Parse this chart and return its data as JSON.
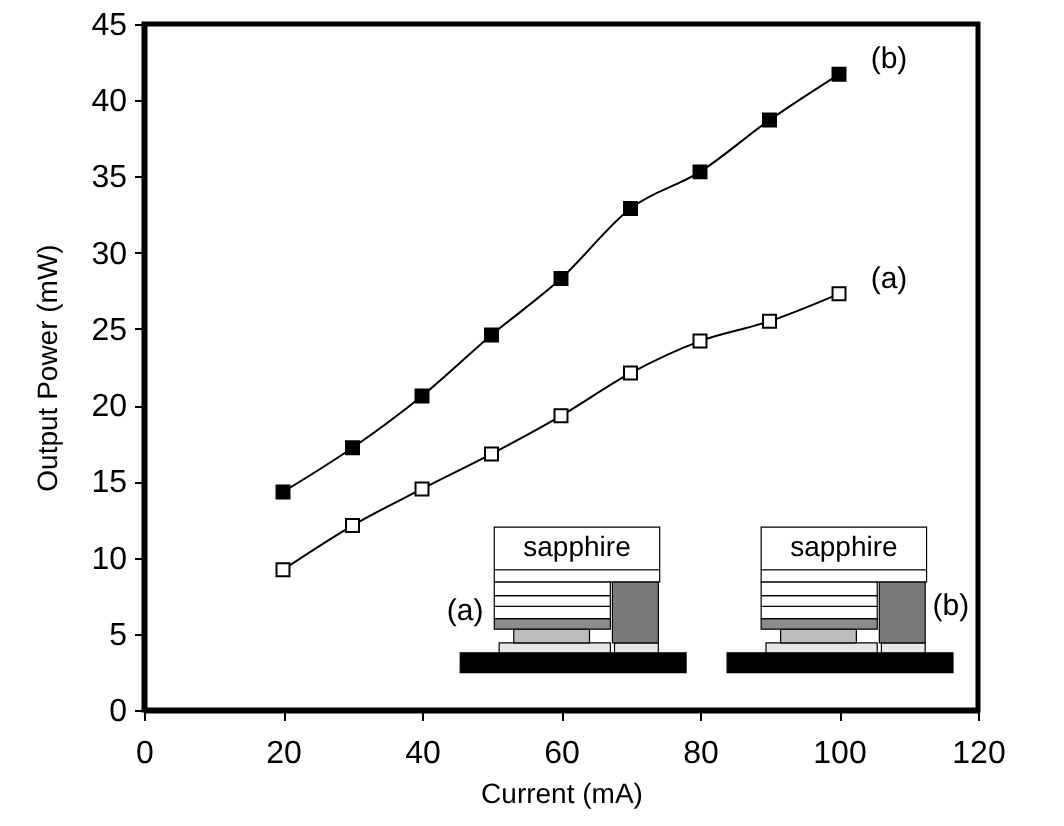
{
  "chart_data": {
    "type": "line",
    "xlabel": "Current (mA)",
    "ylabel": "Output Power (mW)",
    "x": [
      20,
      30,
      40,
      50,
      60,
      70,
      80,
      90,
      100
    ],
    "series": [
      {
        "name": "(a)",
        "color": "#000000",
        "values": [
          9.2,
          12.1,
          14.5,
          16.8,
          19.3,
          22.1,
          24.2,
          25.5,
          27.3
        ]
      },
      {
        "name": "(b)",
        "color": "#000000",
        "values": [
          14.3,
          17.2,
          20.6,
          24.6,
          28.3,
          32.9,
          35.3,
          38.7,
          41.7
        ]
      }
    ],
    "xlim": [
      0,
      120
    ],
    "ylim": [
      0,
      45
    ],
    "xticks": [
      0,
      20,
      40,
      60,
      80,
      100,
      120
    ],
    "yticks": [
      0,
      5,
      10,
      15,
      20,
      25,
      30,
      35,
      40,
      45
    ],
    "marker": "square",
    "line_style": "solid",
    "legend": false,
    "annotations": [
      "sapphire",
      "sapphire",
      "(a)",
      "(b)"
    ]
  }
}
